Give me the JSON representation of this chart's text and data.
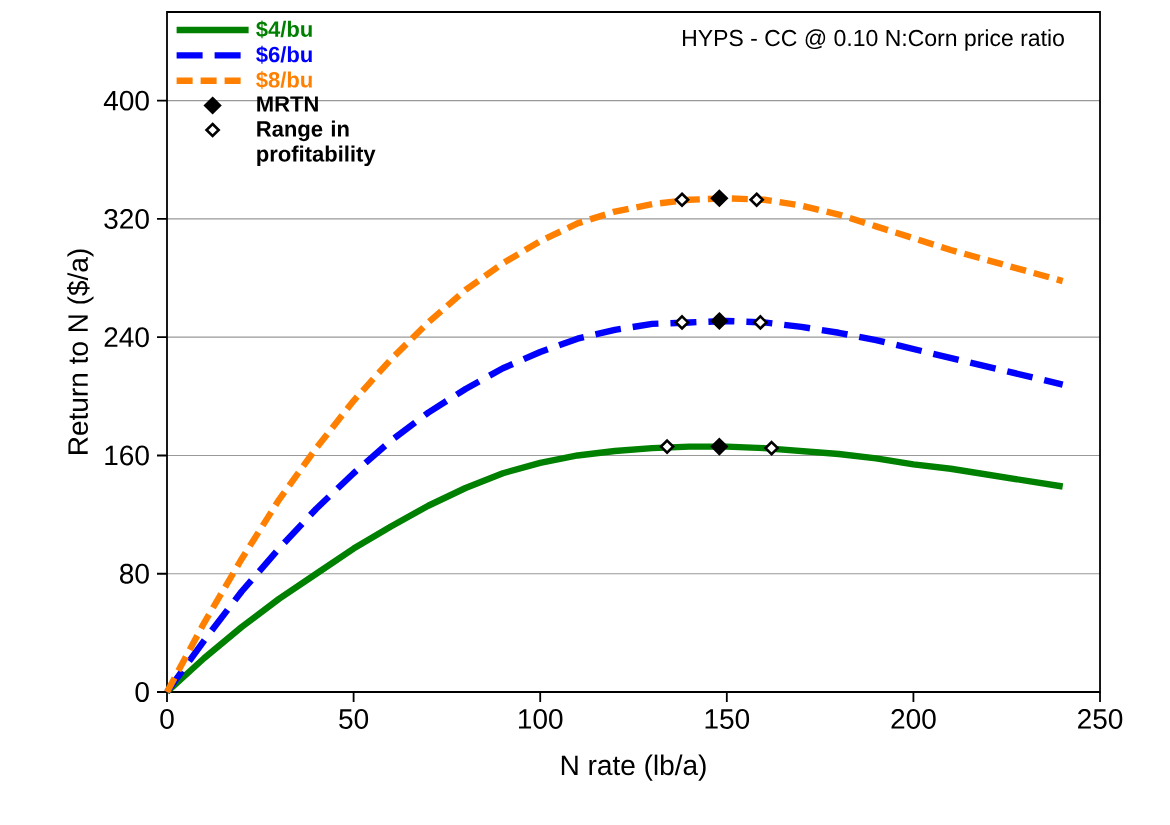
{
  "chart_data": {
    "type": "line",
    "title": "HYPS - CC @ 0.10 N:Corn price ratio",
    "xlabel": "N rate (lb/a)",
    "ylabel": "Return to N ($/a)",
    "x": [
      0,
      10,
      20,
      30,
      40,
      50,
      60,
      70,
      80,
      90,
      100,
      110,
      120,
      130,
      140,
      150,
      160,
      170,
      180,
      190,
      200,
      210,
      220,
      230,
      240
    ],
    "series": [
      {
        "name": "$4/bu",
        "color": "#008000",
        "line_style": "solid",
        "marker": "none",
        "values": [
          0,
          23,
          44,
          63,
          80,
          97,
          112,
          126,
          138,
          148,
          155,
          160,
          163,
          165,
          166,
          166,
          165,
          163,
          161,
          158,
          154,
          151,
          147,
          143,
          139
        ]
      },
      {
        "name": "$6/bu",
        "color": "#0000ff",
        "line_style": "dashed",
        "marker": "none",
        "values": [
          0,
          35,
          68,
          97,
          124,
          148,
          170,
          189,
          205,
          219,
          230,
          239,
          245,
          249,
          250,
          251,
          250,
          247,
          243,
          238,
          232,
          226,
          220,
          214,
          208
        ]
      },
      {
        "name": "$8/bu",
        "color": "#ff8000",
        "line_style": "dotted",
        "marker": "none",
        "values": [
          0,
          47,
          90,
          130,
          165,
          197,
          225,
          250,
          272,
          290,
          305,
          317,
          325,
          330,
          333,
          334,
          333,
          329,
          323,
          315,
          307,
          299,
          292,
          285,
          278
        ]
      },
      {
        "name": "MRTN",
        "type": "scatter",
        "color": "#000000",
        "marker": "diamond",
        "x": [
          148,
          148,
          148
        ],
        "values": [
          166,
          251,
          334
        ]
      },
      {
        "name": "Range in profitability",
        "type": "scatter",
        "color": "#ffffff",
        "marker": "diamond",
        "x": [
          134,
          162,
          138,
          159,
          138,
          158
        ],
        "values": [
          166,
          165,
          250,
          250,
          333,
          333
        ]
      }
    ],
    "xlim": [
      0,
      250
    ],
    "ylim": [
      0,
      460
    ],
    "xticks": [
      0,
      50,
      100,
      150,
      200,
      250
    ],
    "yticks": [
      0,
      80,
      160,
      240,
      320,
      400
    ],
    "grid": "y",
    "legend": "top left"
  }
}
